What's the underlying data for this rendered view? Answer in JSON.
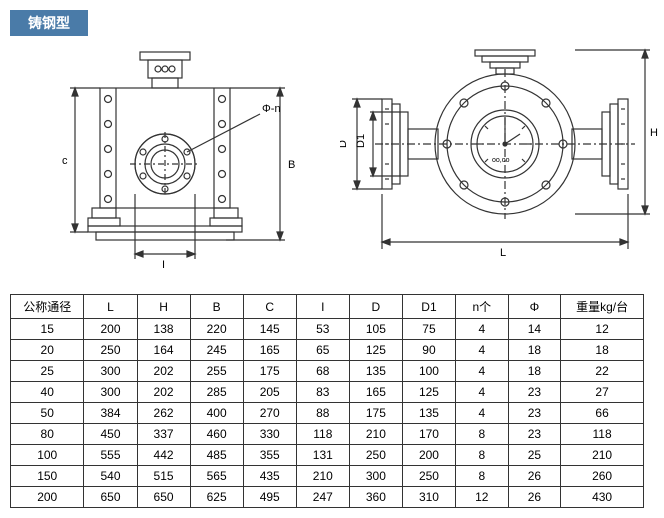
{
  "title": "铸钢型",
  "table": {
    "headers": [
      "公称通径",
      "L",
      "H",
      "B",
      "C",
      "I",
      "D",
      "D1",
      "n个",
      "Φ",
      "重量kg/台"
    ],
    "rows": [
      [
        "15",
        "200",
        "138",
        "220",
        "145",
        "53",
        "105",
        "75",
        "4",
        "14",
        "12"
      ],
      [
        "20",
        "250",
        "164",
        "245",
        "165",
        "65",
        "125",
        "90",
        "4",
        "18",
        "18"
      ],
      [
        "25",
        "300",
        "202",
        "255",
        "175",
        "68",
        "135",
        "100",
        "4",
        "18",
        "22"
      ],
      [
        "40",
        "300",
        "202",
        "285",
        "205",
        "83",
        "165",
        "125",
        "4",
        "23",
        "27"
      ],
      [
        "50",
        "384",
        "262",
        "400",
        "270",
        "88",
        "175",
        "135",
        "4",
        "23",
        "66"
      ],
      [
        "80",
        "450",
        "337",
        "460",
        "330",
        "118",
        "210",
        "170",
        "8",
        "23",
        "118"
      ],
      [
        "100",
        "555",
        "442",
        "485",
        "355",
        "131",
        "250",
        "200",
        "8",
        "25",
        "210"
      ],
      [
        "150",
        "540",
        "515",
        "565",
        "435",
        "210",
        "300",
        "250",
        "8",
        "26",
        "260"
      ],
      [
        "200",
        "650",
        "650",
        "625",
        "495",
        "247",
        "360",
        "310",
        "12",
        "26",
        "430"
      ]
    ]
  },
  "labels": {
    "B": "B",
    "c": "c",
    "I": "I",
    "phi_n": "Φ-n",
    "L": "L",
    "H": "H",
    "D": "D",
    "D1": "D1",
    "gauge": "oo,oo"
  },
  "colors": {
    "line": "#333333",
    "bg": "#ffffff",
    "title_bg": "#4a7ba8"
  }
}
